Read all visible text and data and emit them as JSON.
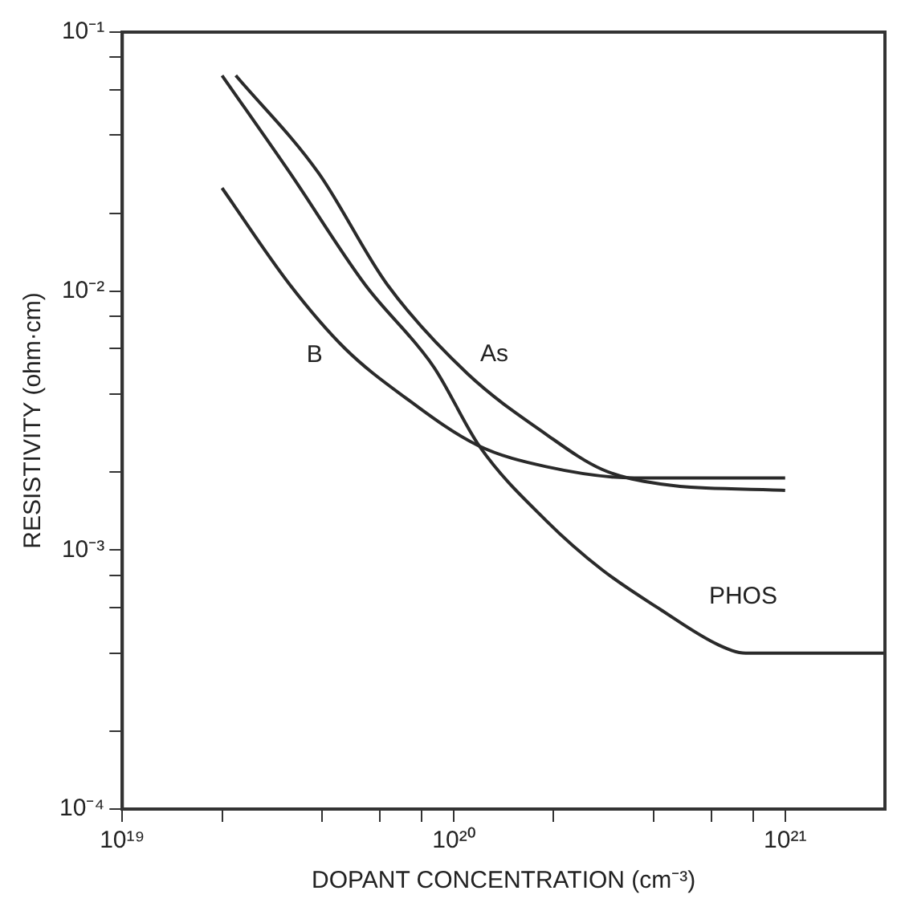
{
  "chart_data": {
    "type": "line",
    "xlabel": "DOPANT CONCENTRATION (cm⁻³)",
    "ylabel": "RESISTIVITY (ohm·cm)",
    "log": "xy",
    "grid": false,
    "legend": false,
    "marker": "none",
    "line_style": "solid",
    "xlim": [
      1e+19,
      2e+21
    ],
    "ylim": [
      0.0001,
      0.1
    ],
    "xticks": [
      {
        "value": 1e+19,
        "label": "10¹⁹"
      },
      {
        "value": 2e+19,
        "label": null
      },
      {
        "value": 4e+19,
        "label": null
      },
      {
        "value": 6e+19,
        "label": null
      },
      {
        "value": 8e+19,
        "label": null
      },
      {
        "value": 1e+20,
        "label": "10²⁰"
      },
      {
        "value": 2e+20,
        "label": null
      },
      {
        "value": 4e+20,
        "label": null
      },
      {
        "value": 6e+20,
        "label": null
      },
      {
        "value": 8e+20,
        "label": null
      },
      {
        "value": 1e+21,
        "label": "10²¹"
      }
    ],
    "yticks": [
      {
        "value": 0.0001,
        "label": "10⁻⁴"
      },
      {
        "value": 0.0002,
        "label": null
      },
      {
        "value": 0.0004,
        "label": null
      },
      {
        "value": 0.0006,
        "label": null
      },
      {
        "value": 0.0008,
        "label": null
      },
      {
        "value": 0.001,
        "label": "10⁻³"
      },
      {
        "value": 0.002,
        "label": null
      },
      {
        "value": 0.004,
        "label": null
      },
      {
        "value": 0.006,
        "label": null
      },
      {
        "value": 0.008,
        "label": null
      },
      {
        "value": 0.01,
        "label": "10⁻²"
      },
      {
        "value": 0.02,
        "label": null
      },
      {
        "value": 0.04,
        "label": null
      },
      {
        "value": 0.06,
        "label": null
      },
      {
        "value": 0.08,
        "label": null
      },
      {
        "value": 0.1,
        "label": "10⁻¹"
      }
    ],
    "series": [
      {
        "name": "B",
        "color": "#2a2a2a",
        "x": [
          2e+19,
          3.2e+19,
          4.7e+19,
          7.1e+19,
          1.18e+20,
          1.9e+20,
          3.5e+20,
          1e+21
        ],
        "values": [
          0.025,
          0.0106,
          0.006,
          0.0039,
          0.00254,
          0.0021,
          0.0019,
          0.0019
        ]
      },
      {
        "name": "As",
        "color": "#2a2a2a",
        "x": [
          2.2e+19,
          3.9e+19,
          6.3e+19,
          1.1e+20,
          1.9e+20,
          2.8e+20,
          4.2e+20,
          1e+21
        ],
        "values": [
          0.068,
          0.0287,
          0.0106,
          0.0048,
          0.0028,
          0.00205,
          0.0018,
          0.0017
        ]
      },
      {
        "name": "PHOS",
        "color": "#2a2a2a",
        "x": [
          2e+19,
          3.2e+19,
          5.4e+19,
          8.7e+19,
          1.2e+20,
          1.9e+20,
          2.8e+20,
          4.2e+20,
          6.3e+20,
          7.6e+20,
          1e+21,
          2e+21
        ],
        "values": [
          0.068,
          0.0287,
          0.0106,
          0.0051,
          0.0025,
          0.0013,
          0.00084,
          0.00059,
          0.00043,
          0.0004,
          0.0004,
          0.0004
        ]
      }
    ]
  }
}
